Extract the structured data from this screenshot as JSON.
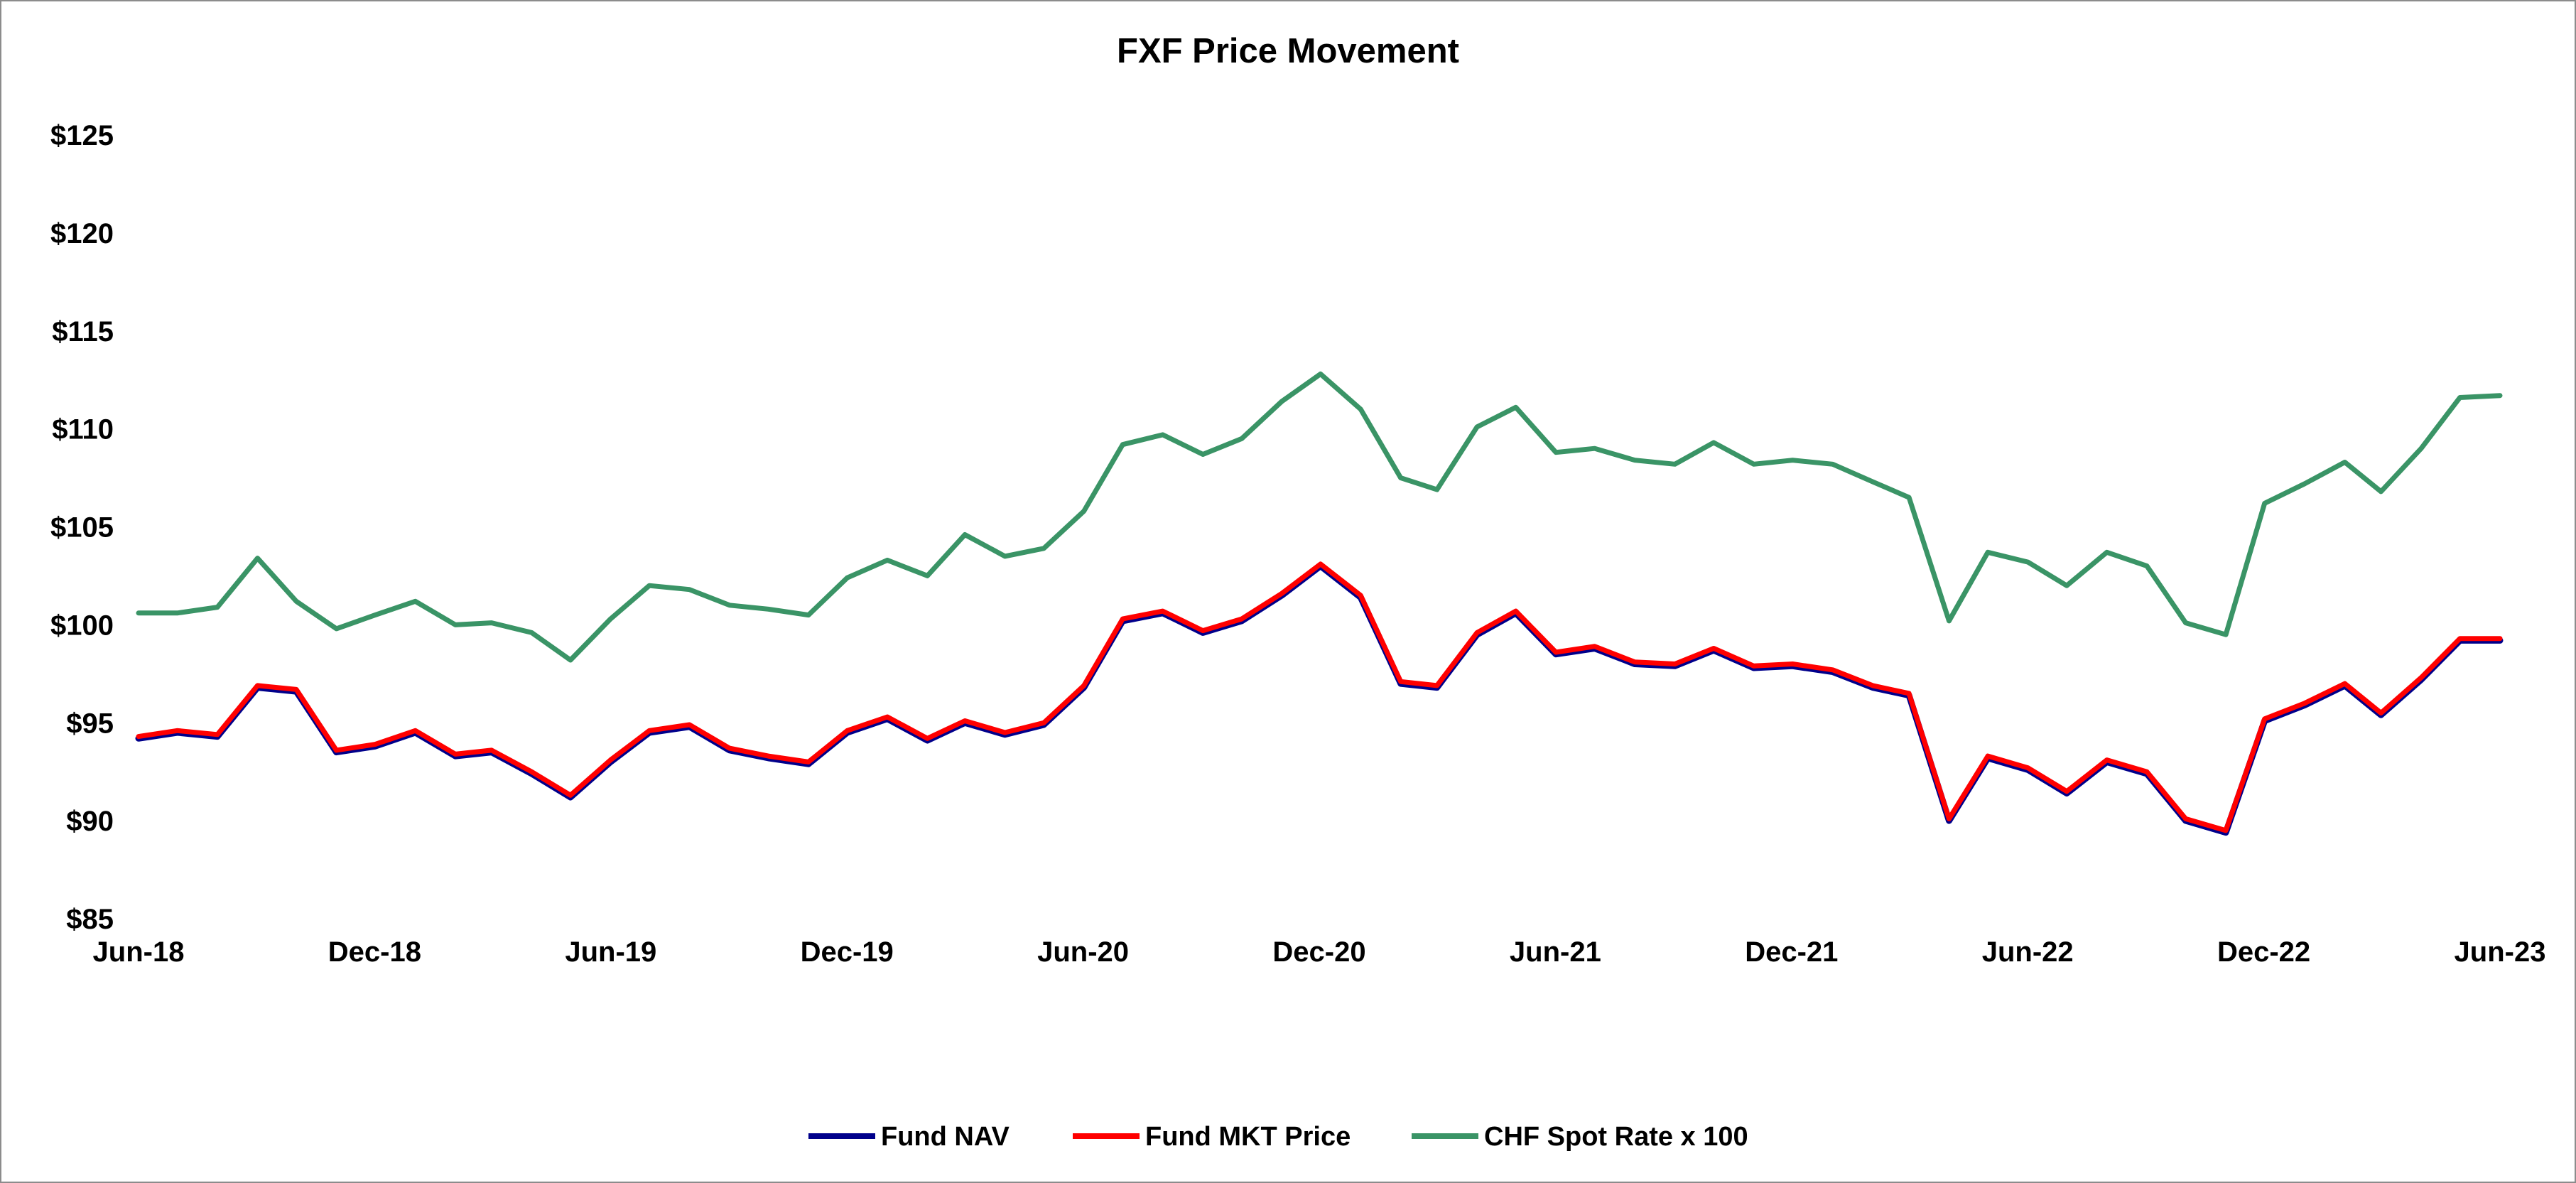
{
  "chart_data": {
    "type": "line",
    "title": "FXF Price Movement",
    "xlabel": "",
    "ylabel": "",
    "x_ticks": [
      "Jun-18",
      "Dec-18",
      "Jun-19",
      "Dec-19",
      "Jun-20",
      "Dec-20",
      "Jun-21",
      "Dec-21",
      "Jun-22",
      "Dec-22",
      "Jun-23"
    ],
    "y_ticks": [
      "$85",
      "$90",
      "$95",
      "$100",
      "$105",
      "$110",
      "$115",
      "$120",
      "$125"
    ],
    "xlim": [
      "2018-06-01",
      "2023-06-01"
    ],
    "ylim": [
      85,
      125
    ],
    "grid": false,
    "legend_position": "bottom",
    "x": [
      "2018-06-01",
      "2018-07-01",
      "2018-08-01",
      "2018-09-01",
      "2018-10-01",
      "2018-11-01",
      "2018-12-01",
      "2019-01-01",
      "2019-02-01",
      "2019-03-01",
      "2019-04-01",
      "2019-05-01",
      "2019-06-01",
      "2019-07-01",
      "2019-08-01",
      "2019-09-01",
      "2019-10-01",
      "2019-11-01",
      "2019-12-01",
      "2020-01-01",
      "2020-02-01",
      "2020-03-01",
      "2020-04-01",
      "2020-05-01",
      "2020-06-01",
      "2020-07-01",
      "2020-08-01",
      "2020-09-01",
      "2020-10-01",
      "2020-11-01",
      "2020-12-01",
      "2021-01-01",
      "2021-02-01",
      "2021-03-01",
      "2021-04-01",
      "2021-05-01",
      "2021-06-01",
      "2021-07-01",
      "2021-08-01",
      "2021-09-01",
      "2021-10-01",
      "2021-11-01",
      "2021-12-01",
      "2022-01-01",
      "2022-02-01",
      "2022-03-01",
      "2022-04-01",
      "2022-05-01",
      "2022-06-01",
      "2022-07-01",
      "2022-08-01",
      "2022-09-01",
      "2022-10-01",
      "2022-11-01",
      "2022-12-01",
      "2023-01-01",
      "2023-02-01",
      "2023-03-01",
      "2023-04-01",
      "2023-05-01",
      "2023-06-01"
    ],
    "series": [
      {
        "name": "Fund NAV",
        "color": "#00008b",
        "values": [
          94.2,
          94.5,
          94.3,
          96.8,
          96.6,
          93.5,
          93.8,
          94.5,
          93.3,
          93.5,
          92.4,
          91.2,
          93.0,
          94.5,
          94.8,
          93.6,
          93.2,
          92.9,
          94.5,
          95.2,
          94.1,
          95.0,
          94.4,
          94.9,
          96.8,
          100.2,
          100.6,
          99.6,
          100.2,
          101.5,
          103.0,
          101.4,
          97.0,
          96.8,
          99.5,
          100.6,
          98.5,
          98.8,
          98.0,
          97.9,
          98.7,
          97.8,
          97.9,
          97.6,
          96.8,
          96.4,
          90.0,
          93.2,
          92.6,
          91.4,
          93.0,
          92.4,
          90.0,
          89.4,
          95.1,
          95.9,
          96.9,
          95.4,
          97.2,
          99.2,
          99.2
        ]
      },
      {
        "name": "Fund MKT Price",
        "color": "#ff0000",
        "values": [
          94.3,
          94.6,
          94.4,
          96.9,
          96.7,
          93.6,
          93.9,
          94.6,
          93.4,
          93.6,
          92.5,
          91.3,
          93.1,
          94.6,
          94.9,
          93.7,
          93.3,
          93.0,
          94.6,
          95.3,
          94.2,
          95.1,
          94.5,
          95.0,
          96.9,
          100.3,
          100.7,
          99.7,
          100.3,
          101.6,
          103.1,
          101.5,
          97.1,
          96.9,
          99.6,
          100.7,
          98.6,
          98.9,
          98.1,
          98.0,
          98.8,
          97.9,
          98.0,
          97.7,
          96.9,
          96.5,
          90.1,
          93.3,
          92.7,
          91.5,
          93.1,
          92.5,
          90.1,
          89.5,
          95.2,
          96.0,
          97.0,
          95.5,
          97.3,
          99.3,
          99.3
        ]
      },
      {
        "name": "CHF Spot Rate x 100",
        "color": "#3a9466",
        "values": [
          100.6,
          100.6,
          100.9,
          103.4,
          101.2,
          99.8,
          100.5,
          101.2,
          100.0,
          100.1,
          99.6,
          98.2,
          100.3,
          102.0,
          101.8,
          101.0,
          100.8,
          100.5,
          102.4,
          103.3,
          102.5,
          104.6,
          103.5,
          103.9,
          105.8,
          109.2,
          109.7,
          108.7,
          109.5,
          111.4,
          112.8,
          111.0,
          107.5,
          106.9,
          110.1,
          111.1,
          108.8,
          109.0,
          108.4,
          108.2,
          109.3,
          108.2,
          108.4,
          108.2,
          107.3,
          106.5,
          100.2,
          103.7,
          103.2,
          102.0,
          103.7,
          103.0,
          100.1,
          99.5,
          106.2,
          107.2,
          108.3,
          106.8,
          109.0,
          111.6,
          111.7
        ]
      }
    ]
  }
}
